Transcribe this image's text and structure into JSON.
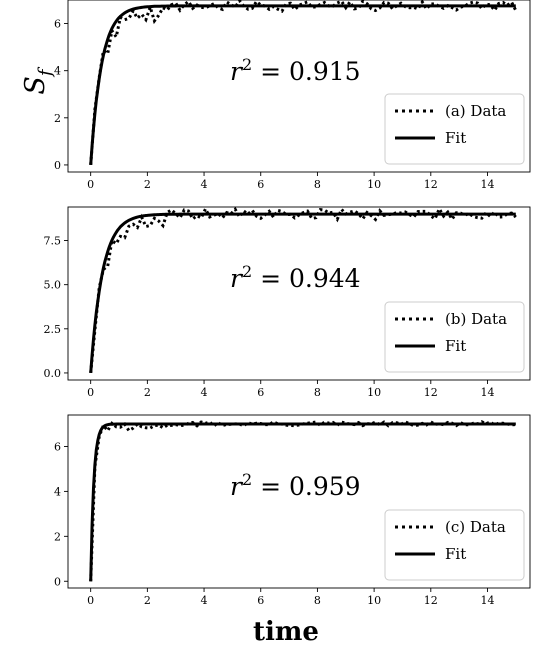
{
  "figure": {
    "ylabel": "S_f",
    "xlabel": "time"
  },
  "chart_data": [
    {
      "type": "line",
      "xlim": [
        -0.8,
        15.5
      ],
      "ylim": [
        -0.3,
        7.0
      ],
      "x_ticks": [
        0,
        2,
        4,
        6,
        8,
        10,
        12,
        14
      ],
      "x_tick_labels": [
        "0",
        "2",
        "4",
        "6",
        "8",
        "10",
        "12",
        "14"
      ],
      "y_ticks": [
        0,
        2,
        4,
        6
      ],
      "y_tick_labels": [
        "0",
        "2",
        "4",
        "6"
      ],
      "annotation": {
        "base": "r",
        "exponent": "2",
        "rest": " = 0.915"
      },
      "fit": {
        "plateau": 6.75,
        "rate": 2.6
      },
      "data_noise": 0.22,
      "seed": 7,
      "legend": {
        "position": "lower-right",
        "entries": [
          {
            "label": "(a) Data",
            "style": "dotted"
          },
          {
            "label": "Fit",
            "style": "solid"
          }
        ]
      },
      "series": [
        {
          "name": "(a) Data",
          "x": [],
          "y": []
        },
        {
          "name": "Fit",
          "x": [],
          "y": []
        }
      ]
    },
    {
      "type": "line",
      "xlim": [
        -0.8,
        15.5
      ],
      "ylim": [
        -0.4,
        9.4
      ],
      "x_ticks": [
        0,
        2,
        4,
        6,
        8,
        10,
        12,
        14
      ],
      "x_tick_labels": [
        "0",
        "2",
        "4",
        "6",
        "8",
        "10",
        "12",
        "14"
      ],
      "y_ticks": [
        0,
        2.5,
        5.0,
        7.5
      ],
      "y_tick_labels": [
        "0.0",
        "2.5",
        "5.0",
        "7.5"
      ],
      "annotation": {
        "base": "r",
        "exponent": "2",
        "rest": " = 0.944"
      },
      "fit": {
        "plateau": 9.0,
        "rate": 2.4
      },
      "data_noise": 0.3,
      "seed": 19,
      "legend": {
        "position": "lower-right",
        "entries": [
          {
            "label": "(b) Data",
            "style": "dotted"
          },
          {
            "label": "Fit",
            "style": "solid"
          }
        ]
      },
      "series": [
        {
          "name": "(b) Data",
          "x": [],
          "y": []
        },
        {
          "name": "Fit",
          "x": [],
          "y": []
        }
      ]
    },
    {
      "type": "line",
      "xlim": [
        -0.8,
        15.5
      ],
      "ylim": [
        -0.3,
        7.4
      ],
      "x_ticks": [
        0,
        2,
        4,
        6,
        8,
        10,
        12,
        14
      ],
      "x_tick_labels": [
        "0",
        "2",
        "4",
        "6",
        "8",
        "10",
        "12",
        "14"
      ],
      "y_ticks": [
        0,
        2,
        4,
        6
      ],
      "y_tick_labels": [
        "0",
        "2",
        "4",
        "6"
      ],
      "annotation": {
        "base": "r",
        "exponent": "2",
        "rest": " = 0.959"
      },
      "fit": {
        "plateau": 7.0,
        "rate": 9.0
      },
      "data_noise": 0.1,
      "seed": 31,
      "legend": {
        "position": "lower-right",
        "entries": [
          {
            "label": "(c) Data",
            "style": "dotted"
          },
          {
            "label": "Fit",
            "style": "solid"
          }
        ]
      },
      "series": [
        {
          "name": "(c) Data",
          "x": [],
          "y": []
        },
        {
          "name": "Fit",
          "x": [],
          "y": []
        }
      ]
    }
  ]
}
